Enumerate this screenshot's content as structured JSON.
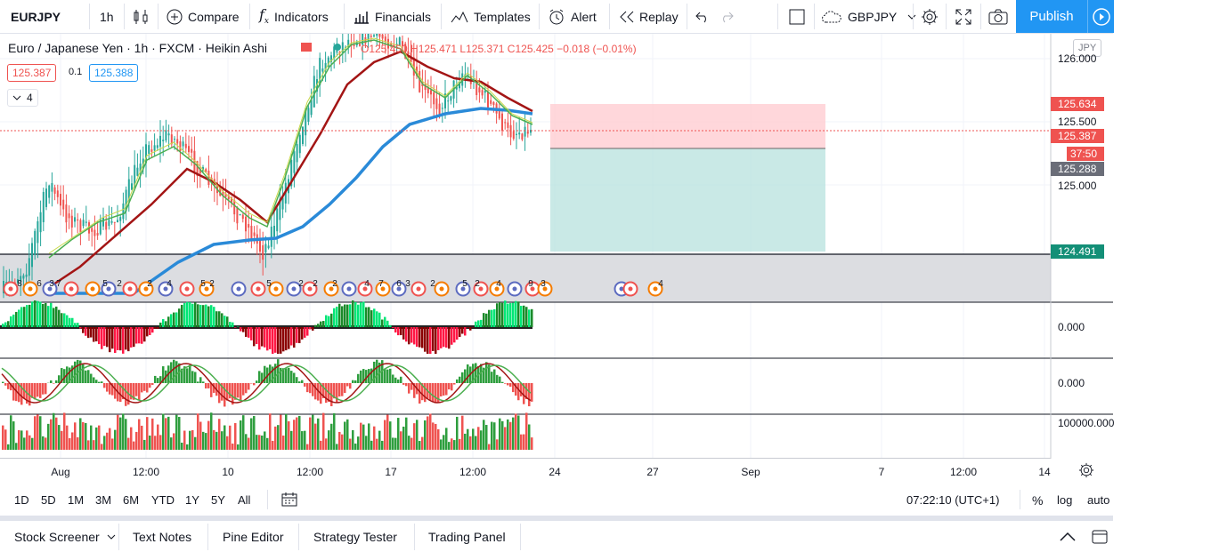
{
  "toolbar": {
    "symbol": "EURJPY",
    "interval": "1h",
    "compare": "Compare",
    "indicators": "Indicators",
    "financials": "Financials",
    "templates": "Templates",
    "alert": "Alert",
    "replay": "Replay",
    "watch_symbol": "GBPJPY",
    "publish": "Publish"
  },
  "legend": {
    "title": "Euro / Japanese Yen · 1h · FXCM · Heikin Ashi",
    "ohlc": "O125.450 H125.471 L125.371 C125.425 −0.018 (−0.01%)",
    "sell_price": "125.387",
    "spread": "0.1",
    "buy_price": "125.388",
    "collapsed_count": "4"
  },
  "price_axis": {
    "currency": "JPY",
    "ticks": [
      "126.000",
      "125.500",
      "125.000"
    ],
    "tag_tp": "125.634",
    "tag_last": "125.387",
    "tag_countdown": "37:50",
    "tag_entry": "125.288",
    "tag_stop": "124.491",
    "osc1_zero": "0.000",
    "osc2_zero": "0.000",
    "volume_tick": "100000.000"
  },
  "time_axis": {
    "labels": [
      "Aug",
      "12:00",
      "10",
      "12:00",
      "17",
      "12:00",
      "24",
      "27",
      "Sep",
      "7",
      "12:00",
      "14"
    ]
  },
  "range_bar": {
    "ranges": [
      "1D",
      "5D",
      "1M",
      "3M",
      "6M",
      "YTD",
      "1Y",
      "5Y",
      "All"
    ],
    "clock": "07:22:10 (UTC+1)",
    "percent": "%",
    "log": "log",
    "auto": "auto"
  },
  "bottom_tabs": [
    "Stock Screener",
    "Text Notes",
    "Pine Editor",
    "Strategy Tester",
    "Trading Panel"
  ],
  "events": {
    "badges": [
      "8",
      "6",
      "3",
      "7",
      "5",
      "2",
      "2",
      "4",
      "5",
      "2",
      "5",
      "2",
      "2",
      "2",
      "4",
      "7",
      "6",
      "3",
      "2",
      "5",
      "2",
      "4",
      "9",
      "3",
      "4"
    ]
  },
  "colors": {
    "accent": "#2196f3",
    "up": "#26a69a",
    "down": "#ef5350",
    "ma_blue": "#2a8ad8",
    "ma_dark_red": "#a31515",
    "profit_zone": "#b2dfdb",
    "loss_zone": "#ffcdd2"
  }
}
